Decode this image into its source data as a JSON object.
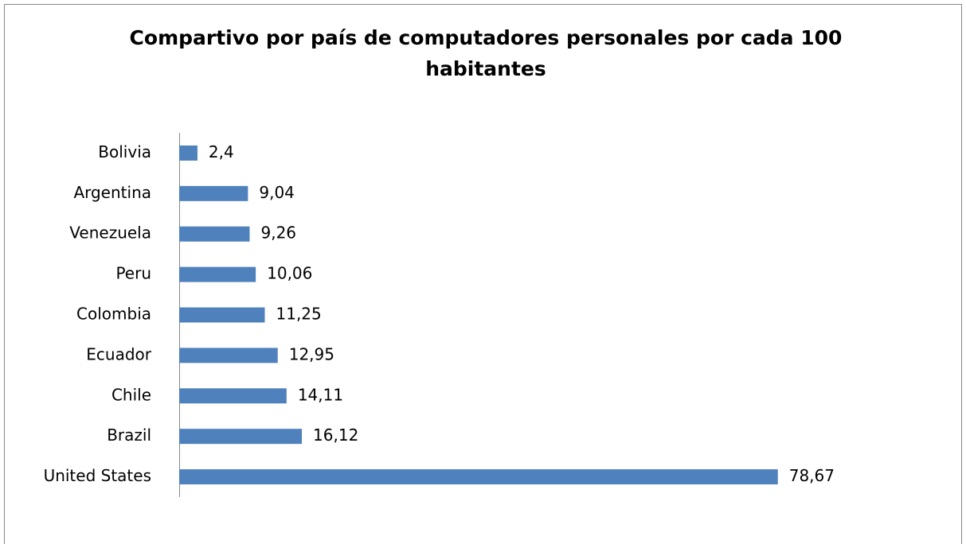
{
  "chart_data": {
    "type": "bar",
    "orientation": "horizontal",
    "title": "Compartivo por país de computadores personales por cada 100 habitantes",
    "categories": [
      "Bolivia",
      "Argentina",
      "Venezuela",
      "Peru",
      "Colombia",
      "Ecuador",
      "Chile",
      "Brazil",
      "United States"
    ],
    "values": [
      2.4,
      9.04,
      9.26,
      10.06,
      11.25,
      12.95,
      14.11,
      16.12,
      78.67
    ],
    "value_labels": [
      "2,4",
      "9,04",
      "9,26",
      "10,06",
      "11,25",
      "12,95",
      "14,11",
      "16,12",
      "78,67"
    ],
    "color": "#4f81bd",
    "xlim": [
      0,
      90
    ]
  }
}
